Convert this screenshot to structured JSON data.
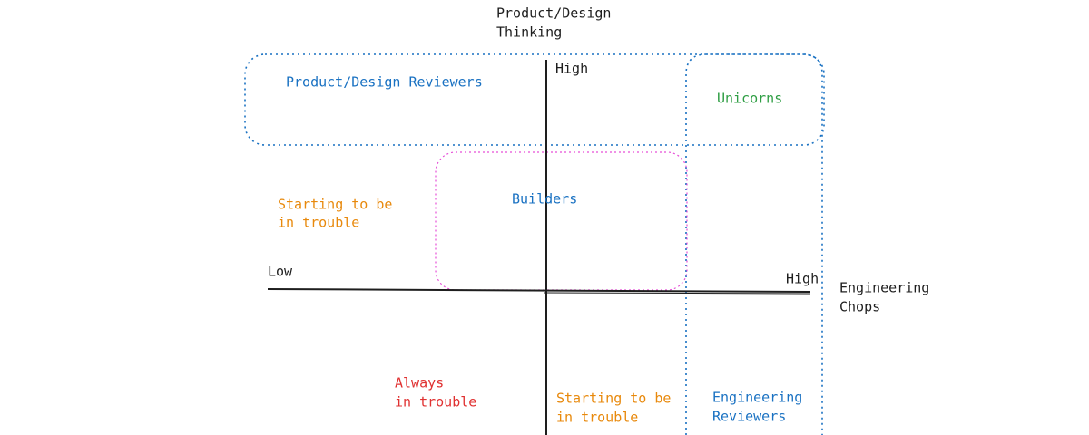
{
  "y_axis": {
    "title_lines": [
      "Product/Design",
      "Thinking"
    ],
    "high": "High"
  },
  "x_axis": {
    "title_lines": [
      "Engineering",
      "Chops"
    ],
    "low": "Low",
    "high": "High"
  },
  "regions": [
    {
      "label_lines": [
        "Product/Design Reviewers"
      ]
    },
    {
      "label_lines": [
        "Unicorns"
      ]
    },
    {
      "label_lines": [
        "Builders"
      ]
    },
    {
      "label_lines": [
        "Starting to be",
        "in trouble"
      ]
    },
    {
      "label_lines": [
        "Always",
        "in trouble"
      ]
    },
    {
      "label_lines": [
        "Starting to be",
        "in trouble"
      ]
    },
    {
      "label_lines": [
        "Engineering",
        "Reviewers"
      ]
    }
  ]
}
